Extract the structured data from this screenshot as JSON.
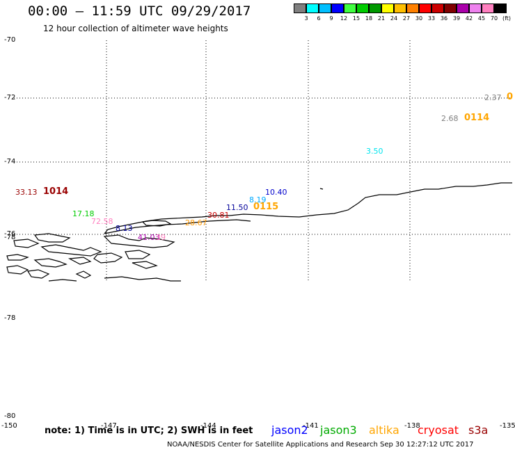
{
  "title": "00:00 – 11:59 UTC 09/29/2017",
  "subtitle": "12 hour collection of altimeter wave heights",
  "legend": {
    "colors": [
      "#808080",
      "#00ffff",
      "#00bfff",
      "#0000ff",
      "#40ff40",
      "#00cc00",
      "#009900",
      "#ffff00",
      "#ffbf00",
      "#ff8000",
      "#ff0000",
      "#cc0000",
      "#800000",
      "#aa00aa",
      "#ee82ee",
      "#ff80c0",
      "#000000"
    ],
    "labels": [
      "3",
      "6",
      "9",
      "12",
      "15",
      "18",
      "21",
      "24",
      "27",
      "30",
      "33",
      "36",
      "39",
      "42",
      "45",
      "70",
      "(ft)"
    ]
  },
  "lat_labels": [
    "-70",
    "-72",
    "-74",
    "-76",
    "-78",
    "-78",
    "-80"
  ],
  "lon_labels": [
    "-150",
    "-147",
    "-144",
    "-141",
    "-138",
    "-135"
  ],
  "wave_labels": [
    {
      "text": "2.37",
      "color": "#808080"
    },
    {
      "text": "0",
      "color": "#ffa500"
    },
    {
      "text": "2.68",
      "color": "#808080"
    },
    {
      "text": "0114",
      "color": "#ffa500"
    },
    {
      "text": "3.50",
      "color": "#00e5ee"
    },
    {
      "text": "33.13",
      "color": "#990000"
    },
    {
      "text": "1014",
      "color": "#990000"
    },
    {
      "text": "10.40",
      "color": "#0000cc"
    },
    {
      "text": "8.19",
      "color": "#00aaff"
    },
    {
      "text": "11.50",
      "color": "#000099"
    },
    {
      "text": "0115",
      "color": "#ffa500"
    },
    {
      "text": "30.81",
      "color": "#cc0000"
    },
    {
      "text": "17.18",
      "color": "#00cc00"
    },
    {
      "text": "72.58",
      "color": "#ff80c0"
    },
    {
      "text": "28.67",
      "color": "#ff9900"
    },
    {
      "text": "8.13",
      "color": "#000099"
    },
    {
      "text": "41.03",
      "color": "#aa00aa"
    },
    {
      "text": "39",
      "color": "#ff80c0"
    }
  ],
  "note": "note: 1) Time is in UTC; 2) SWH is in feet",
  "satellites": [
    {
      "name": "jason2",
      "color": "#0000ff"
    },
    {
      "name": "jason3",
      "color": "#00aa00"
    },
    {
      "name": "altika",
      "color": "#ffa500"
    },
    {
      "name": "cryosat",
      "color": "#ff0000"
    },
    {
      "name": "s3a",
      "color": "#990000"
    }
  ],
  "footer": "NOAA/NESDIS Center for Satellite Applications and Research    Sep 30 12:27:12 UTC 2017"
}
